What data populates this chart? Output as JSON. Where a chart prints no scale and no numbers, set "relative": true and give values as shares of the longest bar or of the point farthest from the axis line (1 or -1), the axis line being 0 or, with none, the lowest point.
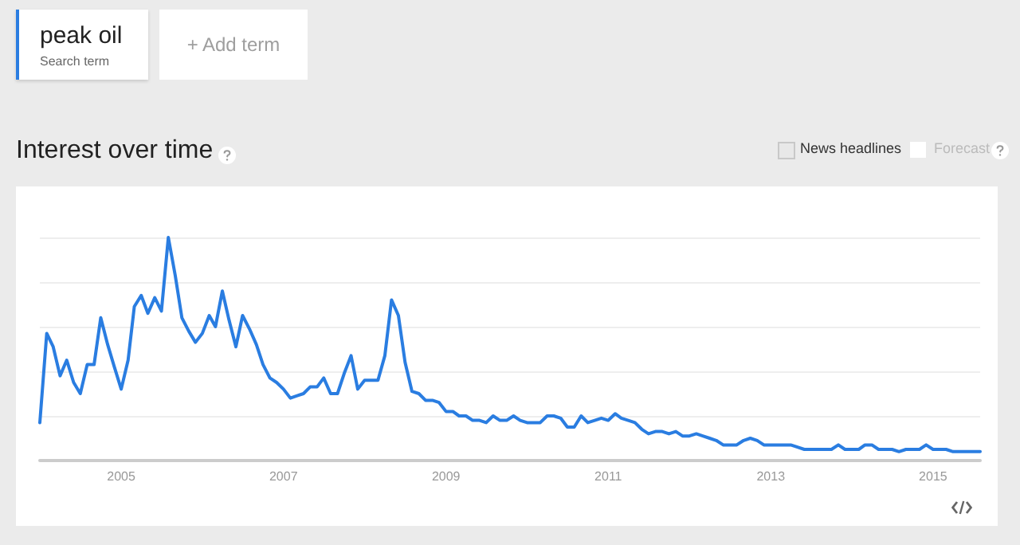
{
  "chart_data": {
    "type": "line",
    "title": "Interest over time",
    "relative": true,
    "legend": "top left",
    "grid": "y",
    "marker": "none",
    "line_style": "solid",
    "annotations": [
      "Search term",
      "+ Add term",
      "News headlines",
      "Forecast"
    ],
    "xlim": [
      "2004-01",
      "2015-08"
    ],
    "xticks": [
      {
        "value": "2005-01",
        "label": "2005"
      },
      {
        "value": "2007-01",
        "label": "2007"
      },
      {
        "value": "2009-01",
        "label": "2009"
      },
      {
        "value": "2011-01",
        "label": "2011"
      },
      {
        "value": "2013-01",
        "label": "2013"
      },
      {
        "value": "2015-01",
        "label": "2015"
      }
    ],
    "x": [
      "2004-01",
      "2004-02",
      "2004-03",
      "2004-04",
      "2004-05",
      "2004-06",
      "2004-07",
      "2004-08",
      "2004-09",
      "2004-10",
      "2004-11",
      "2004-12",
      "2005-01",
      "2005-02",
      "2005-03",
      "2005-04",
      "2005-05",
      "2005-06",
      "2005-07",
      "2005-08",
      "2005-09",
      "2005-10",
      "2005-11",
      "2005-12",
      "2006-01",
      "2006-02",
      "2006-03",
      "2006-04",
      "2006-05",
      "2006-06",
      "2006-07",
      "2006-08",
      "2006-09",
      "2006-10",
      "2006-11",
      "2006-12",
      "2007-01",
      "2007-02",
      "2007-03",
      "2007-04",
      "2007-05",
      "2007-06",
      "2007-07",
      "2007-08",
      "2007-09",
      "2007-10",
      "2007-11",
      "2007-12",
      "2008-01",
      "2008-02",
      "2008-03",
      "2008-04",
      "2008-05",
      "2008-06",
      "2008-07",
      "2008-08",
      "2008-09",
      "2008-10",
      "2008-11",
      "2008-12",
      "2009-01",
      "2009-02",
      "2009-03",
      "2009-04",
      "2009-05",
      "2009-06",
      "2009-07",
      "2009-08",
      "2009-09",
      "2009-10",
      "2009-11",
      "2009-12",
      "2010-01",
      "2010-02",
      "2010-03",
      "2010-04",
      "2010-05",
      "2010-06",
      "2010-07",
      "2010-08",
      "2010-09",
      "2010-10",
      "2010-11",
      "2010-12",
      "2011-01",
      "2011-02",
      "2011-03",
      "2011-04",
      "2011-05",
      "2011-06",
      "2011-07",
      "2011-08",
      "2011-09",
      "2011-10",
      "2011-11",
      "2011-12",
      "2012-01",
      "2012-02",
      "2012-03",
      "2012-04",
      "2012-05",
      "2012-06",
      "2012-07",
      "2012-08",
      "2012-09",
      "2012-10",
      "2012-11",
      "2012-12",
      "2013-01",
      "2013-02",
      "2013-03",
      "2013-04",
      "2013-05",
      "2013-06",
      "2013-07",
      "2013-08",
      "2013-09",
      "2013-10",
      "2013-11",
      "2013-12",
      "2014-01",
      "2014-02",
      "2014-03",
      "2014-04",
      "2014-05",
      "2014-06",
      "2014-07",
      "2014-08",
      "2014-09",
      "2014-10",
      "2014-11",
      "2014-12",
      "2015-01",
      "2015-02",
      "2015-03",
      "2015-04",
      "2015-05",
      "2015-06",
      "2015-07",
      "2015-08"
    ],
    "series": [
      {
        "name": "peak oil",
        "color": "#2a7de1",
        "values": [
          0.17,
          0.57,
          0.51,
          0.38,
          0.45,
          0.35,
          0.3,
          0.43,
          0.43,
          0.64,
          0.52,
          0.42,
          0.32,
          0.45,
          0.69,
          0.74,
          0.66,
          0.73,
          0.67,
          1.0,
          0.83,
          0.64,
          0.58,
          0.53,
          0.57,
          0.65,
          0.6,
          0.76,
          0.63,
          0.51,
          0.65,
          0.59,
          0.52,
          0.43,
          0.37,
          0.35,
          0.32,
          0.28,
          0.29,
          0.3,
          0.33,
          0.33,
          0.37,
          0.3,
          0.3,
          0.39,
          0.47,
          0.32,
          0.36,
          0.36,
          0.36,
          0.47,
          0.72,
          0.65,
          0.44,
          0.31,
          0.3,
          0.27,
          0.27,
          0.26,
          0.22,
          0.22,
          0.2,
          0.2,
          0.18,
          0.18,
          0.17,
          0.2,
          0.18,
          0.18,
          0.2,
          0.18,
          0.17,
          0.17,
          0.17,
          0.2,
          0.2,
          0.19,
          0.15,
          0.15,
          0.2,
          0.17,
          0.18,
          0.19,
          0.18,
          0.21,
          0.19,
          0.18,
          0.17,
          0.14,
          0.12,
          0.13,
          0.13,
          0.12,
          0.13,
          0.11,
          0.11,
          0.12,
          0.11,
          0.1,
          0.09,
          0.07,
          0.07,
          0.07,
          0.09,
          0.1,
          0.09,
          0.07,
          0.07,
          0.07,
          0.07,
          0.07,
          0.06,
          0.05,
          0.05,
          0.05,
          0.05,
          0.05,
          0.07,
          0.05,
          0.05,
          0.05,
          0.07,
          0.07,
          0.05,
          0.05,
          0.05,
          0.04,
          0.05,
          0.05,
          0.05,
          0.07,
          0.05,
          0.05,
          0.05,
          0.04,
          0.04,
          0.04,
          0.04,
          0.04
        ]
      }
    ]
  }
}
